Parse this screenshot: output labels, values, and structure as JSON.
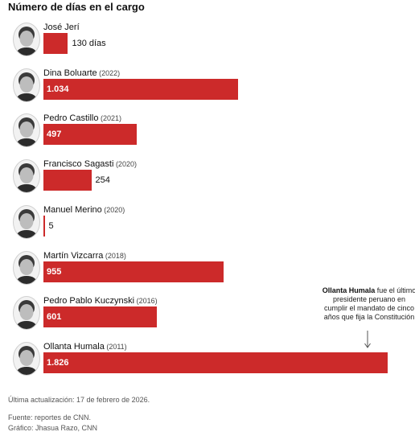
{
  "chart_data": {
    "type": "bar",
    "orientation": "horizontal",
    "title": "Número de días en el cargo",
    "xlim": [
      0,
      1826
    ],
    "categories": [
      "José Jerí",
      "Dina Boluarte",
      "Pedro Castillo",
      "Francisco Sagasti",
      "Manuel Merino",
      "Martín Vizcarra",
      "Pedro Pablo Kuczynski",
      "Ollanta Humala"
    ],
    "years": [
      "",
      "(2022)",
      "(2021)",
      "(2020)",
      "(2020)",
      "(2018)",
      "(2016)",
      "(2011)"
    ],
    "values": [
      130,
      1034,
      497,
      254,
      5,
      955,
      601,
      1826
    ],
    "data_labels": [
      "130 días",
      "1.034",
      "497",
      "254",
      "5",
      "955",
      "601",
      "1.826"
    ],
    "annotation": {
      "bold": "Ollanta Humala",
      "text": "fue el último presidente peruano en cumplir el mandato de cinco años que fija la Constitución"
    }
  },
  "colors": {
    "bar": "#cc2a2a"
  },
  "footer": {
    "updated": "Última actualización: 17 de febrero de 2026.",
    "source": "Fuente: reportes de CNN.",
    "credit": "Gráfico: Jhasua Razo, CNN"
  }
}
